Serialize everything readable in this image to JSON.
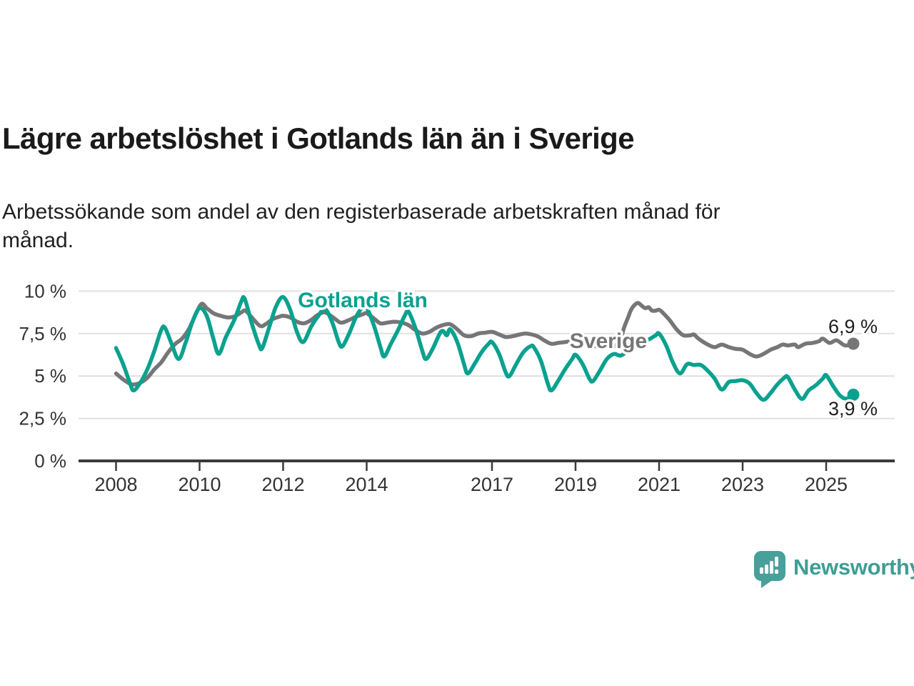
{
  "header": {
    "title": "Lägre arbetslöshet i Gotlands län än i Sverige",
    "subtitle": "Arbetssökande som andel av den registerbaserade arbetskraften månad för månad.",
    "subtitle_line1": "Arbetssökande som andel av den registerbaserade arbetskraften månad för",
    "subtitle_line2": "månad."
  },
  "footer": {
    "brand_name": "Newsworthy",
    "logo_icon": "speech-bubble-bar-chart-icon"
  },
  "colors": {
    "gotland_teal": "#0aa18f",
    "sverige_gray": "#767678",
    "grid": "#e0e0e0",
    "axis": "#3a3a3c",
    "tick_text": "#333333",
    "value_text": "#1f1f1f",
    "brand_teal": "#47a09a",
    "background": "#ffffff"
  },
  "chart_data": {
    "type": "line",
    "title": "Lägre arbetslöshet i Gotlands län än i Sverige",
    "xlabel": "",
    "ylabel": "Arbetssökande som andel av den registerbaserade arbetskraften",
    "unit": "%",
    "grid": "horizontal",
    "legend_position": "inline-labels",
    "ylim": [
      0,
      10.5
    ],
    "xlim": [
      2007.1,
      2026.6
    ],
    "y_ticks": [
      {
        "label": "10 %",
        "value": 10
      },
      {
        "label": "7,5 %",
        "value": 7.5
      },
      {
        "label": "5 %",
        "value": 5
      },
      {
        "label": "2,5 %",
        "value": 2.5
      },
      {
        "label": "0 %",
        "value": 0
      }
    ],
    "x_ticks": [
      {
        "label": "2008",
        "year": 2008
      },
      {
        "label": "2010",
        "year": 2010
      },
      {
        "label": "2012",
        "year": 2012
      },
      {
        "label": "2014",
        "year": 2014
      },
      {
        "label": "2017",
        "year": 2017
      },
      {
        "label": "2019",
        "year": 2019
      },
      {
        "label": "2021",
        "year": 2021
      },
      {
        "label": "2023",
        "year": 2023
      },
      {
        "label": "2025",
        "year": 2025
      }
    ],
    "series": [
      {
        "name": "Sverige",
        "color_key": "sverige_gray",
        "end_label": "6,9 %",
        "end_value": 6.9,
        "points": [
          [
            2008.0,
            5.15
          ],
          [
            2008.17,
            4.8
          ],
          [
            2008.33,
            4.55
          ],
          [
            2008.42,
            4.5
          ],
          [
            2008.58,
            4.6
          ],
          [
            2008.75,
            4.9
          ],
          [
            2008.92,
            5.4
          ],
          [
            2009.08,
            5.8
          ],
          [
            2009.25,
            6.4
          ],
          [
            2009.42,
            6.9
          ],
          [
            2009.58,
            7.2
          ],
          [
            2009.75,
            7.8
          ],
          [
            2009.92,
            8.7
          ],
          [
            2010.05,
            9.25
          ],
          [
            2010.17,
            9.0
          ],
          [
            2010.33,
            8.7
          ],
          [
            2010.5,
            8.55
          ],
          [
            2010.67,
            8.45
          ],
          [
            2010.83,
            8.5
          ],
          [
            2011.0,
            8.75
          ],
          [
            2011.1,
            8.85
          ],
          [
            2011.25,
            8.45
          ],
          [
            2011.45,
            7.95
          ],
          [
            2011.58,
            8.05
          ],
          [
            2011.75,
            8.35
          ],
          [
            2011.92,
            8.5
          ],
          [
            2012.0,
            8.55
          ],
          [
            2012.17,
            8.45
          ],
          [
            2012.33,
            8.2
          ],
          [
            2012.5,
            8.1
          ],
          [
            2012.67,
            8.3
          ],
          [
            2012.83,
            8.6
          ],
          [
            2013.0,
            8.75
          ],
          [
            2013.17,
            8.5
          ],
          [
            2013.33,
            8.2
          ],
          [
            2013.42,
            8.15
          ],
          [
            2013.58,
            8.3
          ],
          [
            2013.75,
            8.5
          ],
          [
            2013.92,
            8.65
          ],
          [
            2014.0,
            8.7
          ],
          [
            2014.17,
            8.4
          ],
          [
            2014.33,
            8.1
          ],
          [
            2014.5,
            8.15
          ],
          [
            2014.67,
            8.2
          ],
          [
            2014.83,
            8.15
          ],
          [
            2015.0,
            8.0
          ],
          [
            2015.17,
            7.7
          ],
          [
            2015.33,
            7.5
          ],
          [
            2015.5,
            7.6
          ],
          [
            2015.67,
            7.85
          ],
          [
            2015.83,
            8.0
          ],
          [
            2016.0,
            8.05
          ],
          [
            2016.17,
            7.75
          ],
          [
            2016.33,
            7.4
          ],
          [
            2016.5,
            7.35
          ],
          [
            2016.67,
            7.5
          ],
          [
            2016.83,
            7.55
          ],
          [
            2017.0,
            7.6
          ],
          [
            2017.17,
            7.45
          ],
          [
            2017.33,
            7.3
          ],
          [
            2017.5,
            7.35
          ],
          [
            2017.67,
            7.45
          ],
          [
            2017.83,
            7.5
          ],
          [
            2018.08,
            7.35
          ],
          [
            2018.25,
            7.1
          ],
          [
            2018.42,
            6.9
          ],
          [
            2018.58,
            6.95
          ],
          [
            2018.75,
            7.0
          ],
          [
            2018.92,
            7.05
          ],
          [
            2019.08,
            7.0
          ],
          [
            2019.25,
            6.9
          ],
          [
            2019.42,
            6.8
          ],
          [
            2019.58,
            6.7
          ],
          [
            2019.75,
            6.7
          ],
          [
            2019.92,
            6.75
          ],
          [
            2020.0,
            6.9
          ],
          [
            2020.08,
            7.2
          ],
          [
            2020.17,
            7.9
          ],
          [
            2020.25,
            8.4
          ],
          [
            2020.33,
            8.9
          ],
          [
            2020.42,
            9.2
          ],
          [
            2020.5,
            9.3
          ],
          [
            2020.58,
            9.15
          ],
          [
            2020.67,
            9.0
          ],
          [
            2020.75,
            9.05
          ],
          [
            2020.83,
            8.85
          ],
          [
            2020.92,
            8.85
          ],
          [
            2021.0,
            8.9
          ],
          [
            2021.08,
            8.75
          ],
          [
            2021.25,
            8.3
          ],
          [
            2021.42,
            7.75
          ],
          [
            2021.58,
            7.4
          ],
          [
            2021.75,
            7.4
          ],
          [
            2021.83,
            7.45
          ],
          [
            2021.92,
            7.25
          ],
          [
            2022.0,
            7.1
          ],
          [
            2022.17,
            6.85
          ],
          [
            2022.33,
            6.7
          ],
          [
            2022.5,
            6.85
          ],
          [
            2022.67,
            6.7
          ],
          [
            2022.83,
            6.6
          ],
          [
            2023.0,
            6.55
          ],
          [
            2023.17,
            6.3
          ],
          [
            2023.33,
            6.15
          ],
          [
            2023.5,
            6.3
          ],
          [
            2023.67,
            6.55
          ],
          [
            2023.83,
            6.7
          ],
          [
            2023.96,
            6.85
          ],
          [
            2024.08,
            6.8
          ],
          [
            2024.25,
            6.85
          ],
          [
            2024.33,
            6.7
          ],
          [
            2024.5,
            6.9
          ],
          [
            2024.67,
            6.95
          ],
          [
            2024.83,
            7.05
          ],
          [
            2024.92,
            7.2
          ],
          [
            2025.08,
            6.95
          ],
          [
            2025.25,
            7.1
          ],
          [
            2025.45,
            6.8
          ],
          [
            2025.65,
            6.9
          ]
        ]
      },
      {
        "name": "Gotlands län",
        "color_key": "gotland_teal",
        "end_label": "3,9 %",
        "end_value": 3.9,
        "points": [
          [
            2008.0,
            6.65
          ],
          [
            2008.17,
            5.7
          ],
          [
            2008.33,
            4.6
          ],
          [
            2008.42,
            4.15
          ],
          [
            2008.58,
            4.6
          ],
          [
            2008.75,
            5.4
          ],
          [
            2008.92,
            6.5
          ],
          [
            2009.08,
            7.7
          ],
          [
            2009.17,
            7.85
          ],
          [
            2009.33,
            6.9
          ],
          [
            2009.5,
            6.0
          ],
          [
            2009.67,
            7.0
          ],
          [
            2009.83,
            8.2
          ],
          [
            2010.0,
            9.0
          ],
          [
            2010.17,
            8.55
          ],
          [
            2010.33,
            7.2
          ],
          [
            2010.46,
            6.3
          ],
          [
            2010.63,
            7.3
          ],
          [
            2010.83,
            8.3
          ],
          [
            2011.0,
            9.4
          ],
          [
            2011.08,
            9.55
          ],
          [
            2011.25,
            8.1
          ],
          [
            2011.42,
            6.85
          ],
          [
            2011.5,
            6.65
          ],
          [
            2011.67,
            7.9
          ],
          [
            2011.83,
            9.1
          ],
          [
            2012.0,
            9.65
          ],
          [
            2012.17,
            8.9
          ],
          [
            2012.33,
            7.6
          ],
          [
            2012.48,
            7.0
          ],
          [
            2012.67,
            7.9
          ],
          [
            2012.83,
            8.5
          ],
          [
            2013.0,
            8.95
          ],
          [
            2013.17,
            8.2
          ],
          [
            2013.33,
            7.0
          ],
          [
            2013.42,
            6.75
          ],
          [
            2013.58,
            7.5
          ],
          [
            2013.75,
            8.5
          ],
          [
            2013.92,
            9.1
          ],
          [
            2014.0,
            9.05
          ],
          [
            2014.17,
            8.0
          ],
          [
            2014.33,
            6.7
          ],
          [
            2014.42,
            6.15
          ],
          [
            2014.58,
            6.9
          ],
          [
            2014.75,
            7.7
          ],
          [
            2014.92,
            8.6
          ],
          [
            2015.0,
            8.8
          ],
          [
            2015.17,
            7.8
          ],
          [
            2015.33,
            6.5
          ],
          [
            2015.42,
            6.0
          ],
          [
            2015.58,
            6.6
          ],
          [
            2015.75,
            7.5
          ],
          [
            2015.83,
            7.65
          ],
          [
            2015.92,
            7.4
          ],
          [
            2016.0,
            7.75
          ],
          [
            2016.17,
            7.0
          ],
          [
            2016.33,
            5.7
          ],
          [
            2016.42,
            5.15
          ],
          [
            2016.58,
            5.7
          ],
          [
            2016.75,
            6.4
          ],
          [
            2016.92,
            6.9
          ],
          [
            2017.0,
            7.0
          ],
          [
            2017.17,
            6.3
          ],
          [
            2017.33,
            5.2
          ],
          [
            2017.42,
            5.0
          ],
          [
            2017.58,
            5.7
          ],
          [
            2017.75,
            6.4
          ],
          [
            2017.92,
            6.75
          ],
          [
            2018.0,
            6.7
          ],
          [
            2018.17,
            5.9
          ],
          [
            2018.33,
            4.6
          ],
          [
            2018.42,
            4.15
          ],
          [
            2018.58,
            4.7
          ],
          [
            2018.75,
            5.4
          ],
          [
            2018.92,
            6.0
          ],
          [
            2019.0,
            6.25
          ],
          [
            2019.17,
            5.7
          ],
          [
            2019.33,
            4.85
          ],
          [
            2019.42,
            4.7
          ],
          [
            2019.58,
            5.3
          ],
          [
            2019.75,
            6.0
          ],
          [
            2019.92,
            6.3
          ],
          [
            2020.08,
            6.2
          ],
          [
            2020.25,
            6.5
          ],
          [
            2020.42,
            6.9
          ],
          [
            2020.58,
            7.05
          ],
          [
            2020.75,
            7.15
          ],
          [
            2020.92,
            7.4
          ],
          [
            2021.0,
            7.5
          ],
          [
            2021.17,
            6.8
          ],
          [
            2021.33,
            5.8
          ],
          [
            2021.5,
            5.15
          ],
          [
            2021.67,
            5.7
          ],
          [
            2021.83,
            5.65
          ],
          [
            2022.0,
            5.65
          ],
          [
            2022.17,
            5.3
          ],
          [
            2022.33,
            4.85
          ],
          [
            2022.5,
            4.2
          ],
          [
            2022.67,
            4.65
          ],
          [
            2022.83,
            4.7
          ],
          [
            2023.0,
            4.75
          ],
          [
            2023.17,
            4.55
          ],
          [
            2023.33,
            4.0
          ],
          [
            2023.5,
            3.6
          ],
          [
            2023.67,
            4.0
          ],
          [
            2023.83,
            4.5
          ],
          [
            2024.0,
            4.9
          ],
          [
            2024.08,
            4.95
          ],
          [
            2024.25,
            4.2
          ],
          [
            2024.42,
            3.65
          ],
          [
            2024.58,
            4.15
          ],
          [
            2024.75,
            4.45
          ],
          [
            2024.92,
            4.85
          ],
          [
            2025.0,
            5.05
          ],
          [
            2025.17,
            4.4
          ],
          [
            2025.33,
            3.85
          ],
          [
            2025.48,
            3.67
          ],
          [
            2025.65,
            3.9
          ]
        ]
      }
    ]
  }
}
